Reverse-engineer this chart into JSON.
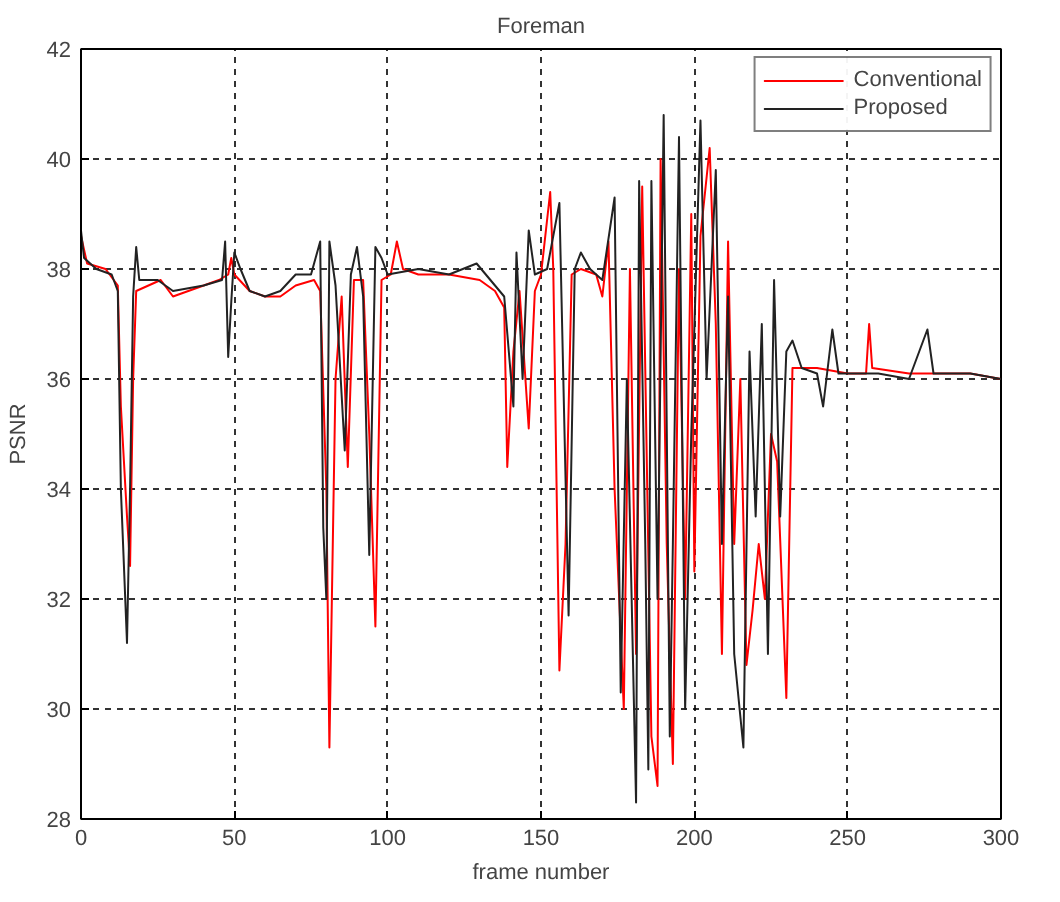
{
  "chart_data": {
    "type": "line",
    "title": "Foreman",
    "xlabel": "frame number",
    "ylabel": "PSNR",
    "xlim": [
      0,
      300
    ],
    "xticks": [
      0,
      50,
      100,
      150,
      200,
      250,
      300
    ],
    "ylim": [
      28,
      42
    ],
    "yticks": [
      28,
      30,
      32,
      34,
      36,
      38,
      40,
      42
    ],
    "grid": true,
    "legend": "top right",
    "marker": "none",
    "line_style": "solid",
    "series": [
      {
        "name": "Conventional",
        "color": "#ff0000",
        "x": [
          0,
          2,
          8,
          12,
          13,
          15,
          16,
          17,
          18,
          22,
          26,
          30,
          35,
          40,
          45,
          48,
          49,
          50,
          55,
          60,
          65,
          70,
          76,
          78,
          80,
          81,
          83,
          85,
          87,
          89,
          92,
          94,
          96,
          98,
          101,
          103,
          105,
          110,
          120,
          130,
          135,
          138,
          139,
          141,
          143,
          146,
          148,
          150,
          153,
          154,
          156,
          158,
          160,
          163,
          168,
          170,
          172,
          174,
          177,
          179,
          181,
          183,
          186,
          188,
          189,
          191,
          193,
          195,
          197,
          199,
          200,
          202,
          205,
          207,
          209,
          211,
          213,
          215,
          217,
          219,
          221,
          223,
          225,
          227,
          230,
          232,
          240,
          250,
          256,
          257,
          258,
          270,
          280,
          290,
          300
        ],
        "values": [
          38.6,
          38.1,
          38.0,
          37.7,
          35.5,
          33.5,
          32.6,
          36,
          37.6,
          37.7,
          37.8,
          37.5,
          37.6,
          37.7,
          37.8,
          37.9,
          38.2,
          37.9,
          37.6,
          37.5,
          37.5,
          37.7,
          37.8,
          37.6,
          34,
          29.3,
          36,
          37.5,
          34.4,
          37.8,
          37.8,
          35,
          31.5,
          37.8,
          37.9,
          38.5,
          38,
          37.9,
          37.9,
          37.8,
          37.6,
          37.3,
          34.4,
          36.5,
          37.6,
          35.1,
          37.6,
          37.9,
          39.4,
          38,
          30.7,
          33,
          37.9,
          38,
          37.9,
          37.5,
          38.5,
          34,
          30,
          38,
          31,
          39.5,
          29.5,
          28.6,
          40,
          33,
          29,
          38,
          32,
          39,
          32.5,
          38.6,
          40.2,
          37,
          31,
          38.5,
          33,
          36,
          30.8,
          31.8,
          33,
          32,
          35,
          34.5,
          30.2,
          36.2,
          36.2,
          36.1,
          36.1,
          37,
          36.2,
          36.1,
          36.1,
          36.1,
          36.0
        ]
      },
      {
        "name": "Proposed",
        "color": "#222222",
        "x": [
          0,
          1,
          5,
          10,
          12,
          13,
          15,
          16,
          17,
          18,
          19,
          25,
          30,
          40,
          46,
          47,
          48,
          49,
          50,
          52,
          55,
          60,
          65,
          70,
          75,
          78,
          79,
          80,
          81,
          83,
          86,
          88,
          90,
          92,
          94,
          96,
          98,
          100,
          110,
          120,
          129,
          135,
          138,
          141,
          142,
          144,
          146,
          148,
          152,
          156,
          159,
          161,
          163,
          166,
          170,
          174,
          176,
          178,
          181,
          182,
          184,
          185,
          186,
          188,
          190,
          192,
          193,
          195,
          197,
          199,
          202,
          204,
          207,
          209,
          211,
          213,
          216,
          218,
          220,
          222,
          224,
          226,
          228,
          230,
          232,
          235,
          240,
          242,
          245,
          247,
          260,
          270,
          276,
          278,
          290,
          300
        ],
        "values": [
          38.7,
          38.2,
          38.0,
          37.9,
          37.6,
          34,
          31.2,
          34,
          37.5,
          38.4,
          37.8,
          37.8,
          37.6,
          37.7,
          37.8,
          38.5,
          36.4,
          37.4,
          38.3,
          38,
          37.6,
          37.5,
          37.6,
          37.9,
          37.9,
          38.5,
          33.3,
          32,
          38.5,
          37.7,
          34.7,
          37.9,
          38.4,
          37.5,
          32.8,
          38.4,
          38.2,
          37.9,
          38,
          37.9,
          38.1,
          37.7,
          37.5,
          35.5,
          38.3,
          36,
          38.7,
          37.9,
          38,
          39.2,
          31.7,
          38,
          38.3,
          38,
          37.8,
          39.3,
          30.3,
          36,
          28.3,
          39.6,
          33,
          28.9,
          39.6,
          32,
          40.8,
          29.5,
          33,
          40.4,
          30,
          35,
          40.7,
          36,
          39.8,
          33,
          37.5,
          31,
          29.3,
          36.5,
          33.5,
          37,
          31,
          37.8,
          33.5,
          36.5,
          36.7,
          36.2,
          36.1,
          35.5,
          36.9,
          36.1,
          36.1,
          36.0,
          36.9,
          36.1,
          36.1,
          36.0
        ]
      }
    ]
  }
}
